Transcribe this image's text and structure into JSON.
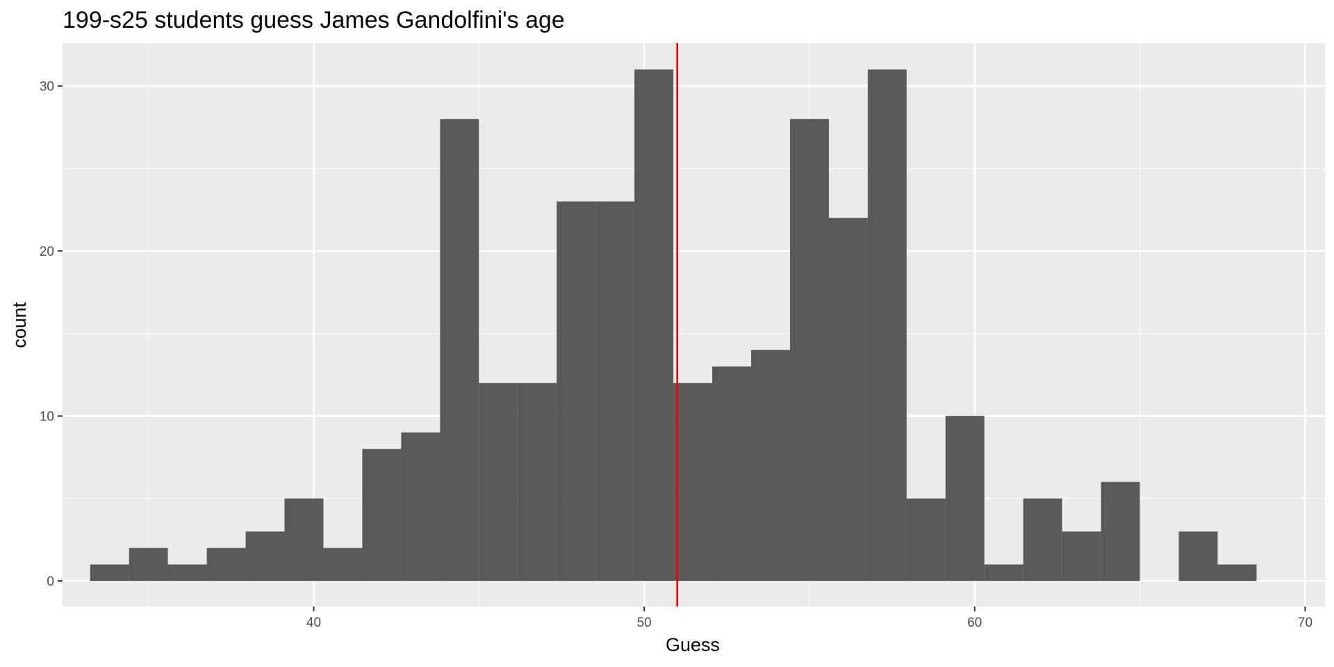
{
  "chart_data": {
    "type": "histogram",
    "title": "199-s25 students guess James Gandolfini's age",
    "xlabel": "Guess",
    "ylabel": "count",
    "xlim": [
      32.4,
      70.6
    ],
    "ylim": [
      -1.55,
      32.6
    ],
    "x_ticks": [
      40,
      50,
      60,
      70
    ],
    "x_minor_ticks": [
      35,
      45,
      55,
      65
    ],
    "y_ticks": [
      0,
      10,
      20,
      30
    ],
    "y_minor_ticks": [
      5,
      15,
      25
    ],
    "bin_width": 1.1765,
    "bins": [
      {
        "x0": 33.2353,
        "count": 1
      },
      {
        "x0": 34.4118,
        "count": 2
      },
      {
        "x0": 35.5882,
        "count": 1
      },
      {
        "x0": 36.7647,
        "count": 2
      },
      {
        "x0": 37.9412,
        "count": 3
      },
      {
        "x0": 39.1176,
        "count": 5
      },
      {
        "x0": 40.2941,
        "count": 2
      },
      {
        "x0": 41.4706,
        "count": 8
      },
      {
        "x0": 42.6471,
        "count": 9
      },
      {
        "x0": 43.8235,
        "count": 28
      },
      {
        "x0": 45.0,
        "count": 12
      },
      {
        "x0": 46.1765,
        "count": 12
      },
      {
        "x0": 47.3529,
        "count": 23
      },
      {
        "x0": 48.5294,
        "count": 23
      },
      {
        "x0": 49.7059,
        "count": 31
      },
      {
        "x0": 50.8824,
        "count": 12
      },
      {
        "x0": 52.0588,
        "count": 13
      },
      {
        "x0": 53.2353,
        "count": 14
      },
      {
        "x0": 54.4118,
        "count": 28
      },
      {
        "x0": 55.5882,
        "count": 22
      },
      {
        "x0": 56.7647,
        "count": 31
      },
      {
        "x0": 57.9412,
        "count": 5
      },
      {
        "x0": 59.1176,
        "count": 10
      },
      {
        "x0": 60.2941,
        "count": 1
      },
      {
        "x0": 61.4706,
        "count": 5
      },
      {
        "x0": 62.6471,
        "count": 3
      },
      {
        "x0": 63.8235,
        "count": 6
      },
      {
        "x0": 65.0,
        "count": 0
      },
      {
        "x0": 66.1765,
        "count": 3
      },
      {
        "x0": 67.3529,
        "count": 1
      }
    ],
    "reference_line": {
      "x": 51,
      "color": "#ff0000"
    },
    "colors": {
      "panel_background": "#ebebeb",
      "gridline": "#ffffff",
      "bar_fill": "#595959",
      "tick_mark": "#333333",
      "tick_text": "#4d4d4d"
    },
    "grid": true,
    "legend": "none"
  }
}
